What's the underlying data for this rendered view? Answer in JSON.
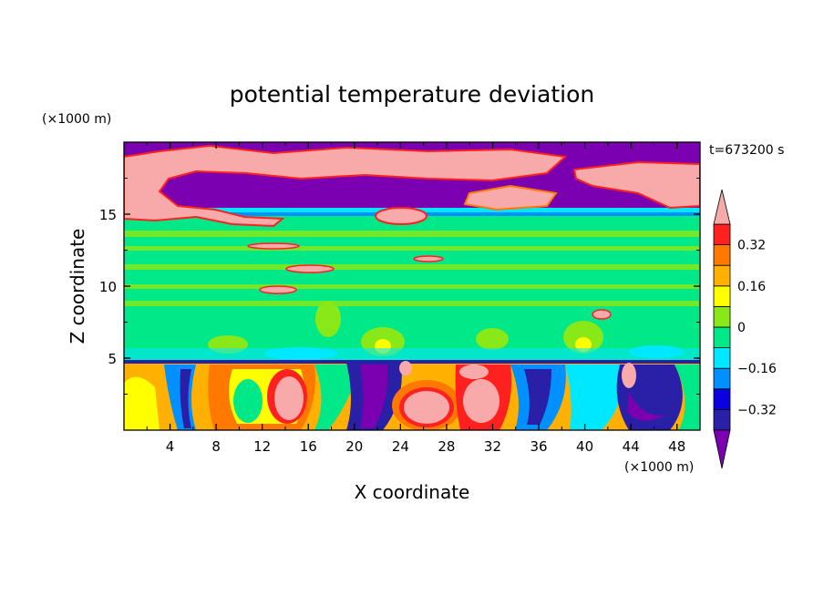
{
  "chart_data": {
    "type": "heatmap",
    "title": "potential temperature deviation",
    "xlabel": "X coordinate",
    "ylabel": "Z coordinate",
    "x_unit": "(×1000 m)",
    "y_unit": "(×1000 m)",
    "time_label": "t=673200 s",
    "xlim": [
      0,
      50
    ],
    "ylim": [
      0,
      20
    ],
    "x_ticks": [
      "4",
      "8",
      "12",
      "16",
      "20",
      "24",
      "28",
      "32",
      "36",
      "40",
      "44",
      "48"
    ],
    "y_ticks": [
      "5",
      "10",
      "15"
    ],
    "colorbar": {
      "levels": [
        -0.4,
        -0.32,
        -0.24,
        -0.16,
        -0.08,
        0,
        0.08,
        0.16,
        0.24,
        0.32,
        0.4
      ],
      "tick_labels": [
        "0.32",
        "0.16",
        "0",
        "−0.16",
        "−0.32"
      ],
      "tick_values": [
        0.32,
        0.16,
        0,
        -0.16,
        -0.32
      ],
      "colors_low_to_high": [
        "#7a00b0",
        "#2a20a8",
        "#0a00e0",
        "#0090ff",
        "#00e8ff",
        "#00e888",
        "#88e818",
        "#ffff00",
        "#ffb000",
        "#ff7800",
        "#ff2020",
        "#f8aaaa"
      ]
    },
    "field_regions": [
      {
        "region": "upper layer",
        "z_range": [
          15,
          20
        ],
        "value": "≤ -0.4 with patches > 0.4"
      },
      {
        "region": "middle layer",
        "z_range": [
          5,
          15
        ],
        "value": "about -0.08 to 0.08"
      },
      {
        "region": "lower layer",
        "z_range": [
          0,
          5
        ],
        "value": "cells from ≤ -0.4 to > 0.4"
      }
    ]
  }
}
